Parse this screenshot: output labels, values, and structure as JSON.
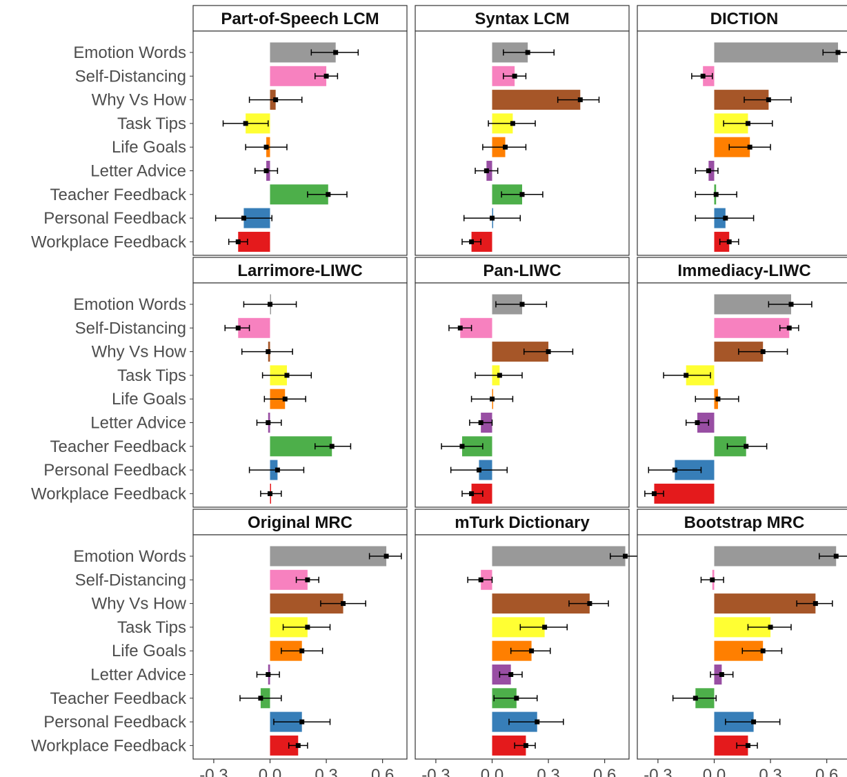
{
  "chart_data": {
    "type": "bar",
    "orientation": "horizontal",
    "facets": "3x3",
    "categories": [
      "Emotion Words",
      "Self-Distancing",
      "Why Vs How",
      "Task Tips",
      "Life Goals",
      "Letter Advice",
      "Teacher Feedback",
      "Personal Feedback",
      "Workplace Feedback"
    ],
    "category_colors": [
      "#999999",
      "#f781bf",
      "#a65628",
      "#ffff33",
      "#ff7f00",
      "#984ea3",
      "#4daf4a",
      "#377eb8",
      "#e41a1c"
    ],
    "xlim": [
      -0.41,
      0.73
    ],
    "x_ticks": [
      "-0.3",
      "0.0",
      "0.3",
      "0.6"
    ],
    "x_tick_values": [
      -0.3,
      0.0,
      0.3,
      0.6
    ],
    "grid": false,
    "legend": "none",
    "panels": [
      {
        "title": "Part-of-Speech LCM",
        "values": [
          0.35,
          0.3,
          0.03,
          -0.13,
          -0.02,
          -0.02,
          0.31,
          -0.14,
          -0.17
        ],
        "ci_low": [
          0.22,
          0.24,
          -0.11,
          -0.25,
          -0.13,
          -0.08,
          0.2,
          -0.29,
          -0.22
        ],
        "ci_high": [
          0.47,
          0.36,
          0.17,
          -0.01,
          0.09,
          0.04,
          0.41,
          0.01,
          -0.12
        ]
      },
      {
        "title": "Syntax LCM",
        "values": [
          0.19,
          0.12,
          0.47,
          0.11,
          0.07,
          -0.03,
          0.16,
          0.0,
          -0.11
        ],
        "ci_low": [
          0.06,
          0.06,
          0.35,
          -0.02,
          -0.05,
          -0.09,
          0.05,
          -0.15,
          -0.16
        ],
        "ci_high": [
          0.33,
          0.18,
          0.57,
          0.23,
          0.18,
          0.03,
          0.27,
          0.15,
          -0.06
        ]
      },
      {
        "title": "DICTION",
        "values": [
          0.66,
          -0.06,
          0.29,
          0.18,
          0.19,
          -0.03,
          0.01,
          0.06,
          0.08
        ],
        "ci_low": [
          0.58,
          -0.12,
          0.16,
          0.05,
          0.08,
          -0.1,
          -0.1,
          -0.1,
          0.03
        ],
        "ci_high": [
          0.73,
          -0.01,
          0.41,
          0.31,
          0.3,
          0.02,
          0.12,
          0.21,
          0.13
        ]
      },
      {
        "title": "Larrimore-LIWC",
        "values": [
          0.0,
          -0.17,
          -0.01,
          0.09,
          0.08,
          -0.01,
          0.33,
          0.04,
          0.0
        ],
        "ci_low": [
          -0.14,
          -0.24,
          -0.15,
          -0.04,
          -0.03,
          -0.07,
          0.24,
          -0.11,
          -0.05
        ],
        "ci_high": [
          0.14,
          -0.11,
          0.12,
          0.22,
          0.19,
          0.06,
          0.43,
          0.18,
          0.06
        ]
      },
      {
        "title": "Pan-LIWC",
        "values": [
          0.16,
          -0.17,
          0.3,
          0.04,
          0.0,
          -0.06,
          -0.16,
          -0.07,
          -0.11
        ],
        "ci_low": [
          0.02,
          -0.23,
          0.17,
          -0.09,
          -0.11,
          -0.12,
          -0.27,
          -0.22,
          -0.16
        ],
        "ci_high": [
          0.29,
          -0.11,
          0.43,
          0.16,
          0.11,
          0.0,
          -0.05,
          0.08,
          -0.05
        ]
      },
      {
        "title": "Immediacy-LIWC",
        "values": [
          0.41,
          0.4,
          0.26,
          -0.15,
          0.02,
          -0.09,
          0.17,
          -0.21,
          -0.32
        ],
        "ci_low": [
          0.29,
          0.35,
          0.13,
          -0.27,
          -0.1,
          -0.15,
          0.07,
          -0.35,
          -0.37
        ],
        "ci_high": [
          0.52,
          0.45,
          0.39,
          -0.02,
          0.13,
          -0.03,
          0.28,
          -0.07,
          -0.27
        ]
      },
      {
        "title": "Original MRC",
        "values": [
          0.62,
          0.2,
          0.39,
          0.2,
          0.17,
          -0.01,
          -0.05,
          0.17,
          0.15
        ],
        "ci_low": [
          0.53,
          0.14,
          0.27,
          0.07,
          0.06,
          -0.07,
          -0.16,
          0.02,
          0.1
        ],
        "ci_high": [
          0.7,
          0.26,
          0.51,
          0.32,
          0.28,
          0.05,
          0.06,
          0.32,
          0.2
        ]
      },
      {
        "title": "mTurk Dictionary",
        "values": [
          0.71,
          -0.06,
          0.52,
          0.28,
          0.21,
          0.1,
          0.13,
          0.24,
          0.18
        ],
        "ci_low": [
          0.63,
          -0.13,
          0.41,
          0.15,
          0.1,
          0.04,
          0.01,
          0.09,
          0.12
        ],
        "ci_high": [
          0.79,
          0.0,
          0.62,
          0.4,
          0.31,
          0.16,
          0.24,
          0.38,
          0.23
        ]
      },
      {
        "title": "Bootstrap MRC",
        "values": [
          0.65,
          -0.01,
          0.54,
          0.3,
          0.26,
          0.04,
          -0.1,
          0.21,
          0.18
        ],
        "ci_low": [
          0.56,
          -0.07,
          0.44,
          0.18,
          0.15,
          -0.02,
          -0.22,
          0.06,
          0.12
        ],
        "ci_high": [
          0.73,
          0.05,
          0.63,
          0.41,
          0.36,
          0.1,
          0.01,
          0.35,
          0.23
        ]
      }
    ]
  }
}
